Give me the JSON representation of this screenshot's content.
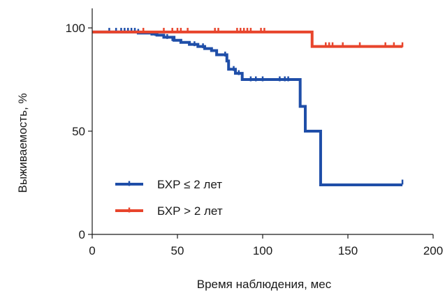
{
  "chart_data": {
    "type": "line",
    "step": true,
    "xlabel": "Время наблюдения, мес",
    "ylabel": "Выживаемость, %",
    "xlim": [
      0,
      200
    ],
    "ylim": [
      0,
      100
    ],
    "xticks": [
      0,
      50,
      100,
      150,
      200
    ],
    "yticks": [
      0,
      50,
      100
    ],
    "grid": false,
    "legend_position": "bottom-left",
    "series": [
      {
        "name": "БХР ≤ 2 лет",
        "color": "#1f4ea8",
        "points": [
          [
            0,
            98
          ],
          [
            25,
            98
          ],
          [
            27,
            97.5
          ],
          [
            35,
            97
          ],
          [
            38,
            96.5
          ],
          [
            42,
            95.5
          ],
          [
            48,
            94
          ],
          [
            52,
            93
          ],
          [
            57,
            92
          ],
          [
            62,
            91
          ],
          [
            66,
            90
          ],
          [
            70,
            89
          ],
          [
            73,
            87
          ],
          [
            79,
            84
          ],
          [
            80,
            80
          ],
          [
            84,
            78
          ],
          [
            88,
            75
          ],
          [
            120,
            75
          ],
          [
            122,
            62
          ],
          [
            125,
            50
          ],
          [
            134,
            24
          ],
          [
            182,
            24
          ]
        ],
        "censored": [
          [
            10,
            98.5
          ],
          [
            14,
            98.5
          ],
          [
            17,
            98.5
          ],
          [
            19,
            98.5
          ],
          [
            21,
            98.5
          ],
          [
            23,
            98.5
          ],
          [
            25,
            98.5
          ],
          [
            27,
            98
          ],
          [
            37,
            97
          ],
          [
            44,
            95.5
          ],
          [
            47,
            94.5
          ],
          [
            60,
            92
          ],
          [
            65,
            91
          ],
          [
            78,
            87
          ],
          [
            83,
            80
          ],
          [
            86,
            78
          ],
          [
            93,
            75
          ],
          [
            96,
            75
          ],
          [
            100,
            75
          ],
          [
            110,
            75
          ],
          [
            113,
            75
          ],
          [
            115,
            75
          ],
          [
            182,
            25
          ]
        ]
      },
      {
        "name": "БХР > 2 лет",
        "color": "#e8452c",
        "points": [
          [
            0,
            98
          ],
          [
            129,
            98
          ],
          [
            129,
            91
          ],
          [
            182,
            91
          ]
        ],
        "censored": [
          [
            30,
            98.5
          ],
          [
            42,
            98.5
          ],
          [
            47,
            98.5
          ],
          [
            50,
            98.5
          ],
          [
            52,
            98.5
          ],
          [
            56,
            98.5
          ],
          [
            72,
            98.5
          ],
          [
            74,
            98.5
          ],
          [
            85,
            98.5
          ],
          [
            87,
            98.5
          ],
          [
            89,
            98.5
          ],
          [
            91,
            98.5
          ],
          [
            93,
            98.5
          ],
          [
            99,
            98.5
          ],
          [
            101,
            98.5
          ],
          [
            137,
            91.5
          ],
          [
            139,
            91.5
          ],
          [
            141,
            91.5
          ],
          [
            147,
            91.5
          ],
          [
            157,
            91.5
          ],
          [
            172,
            91.5
          ],
          [
            177,
            91.5
          ],
          [
            182,
            91.5
          ]
        ]
      }
    ]
  }
}
